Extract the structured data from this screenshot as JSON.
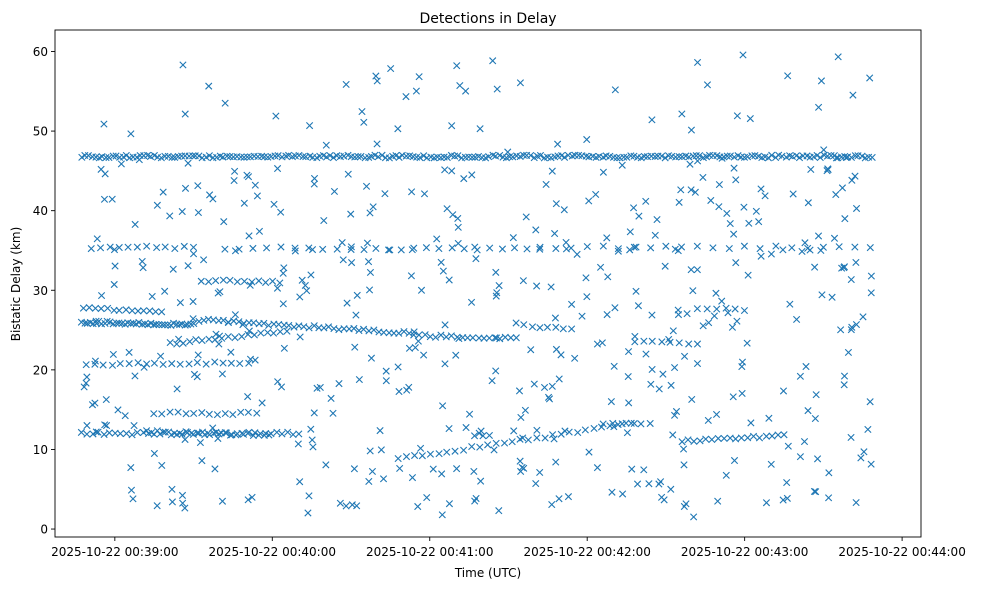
{
  "chart_data": {
    "type": "scatter",
    "title": "Detections in Delay",
    "xlabel": "Time (UTC)",
    "ylabel": "Bistatic Delay (km)",
    "marker": "x",
    "color": "#1f77b4",
    "grid": false,
    "x_units": "minutes since 2025-10-22 00:38:00",
    "xlim": [
      0.62,
      6.12
    ],
    "ylim": [
      -1,
      62.7
    ],
    "xticks": [
      {
        "value": 1,
        "label": "2025-10-22 00:39:00"
      },
      {
        "value": 2,
        "label": "2025-10-22 00:40:00"
      },
      {
        "value": 3,
        "label": "2025-10-22 00:41:00"
      },
      {
        "value": 4,
        "label": "2025-10-22 00:42:00"
      },
      {
        "value": 5,
        "label": "2025-10-22 00:43:00"
      },
      {
        "value": 6,
        "label": "2025-10-22 00:44:00"
      }
    ],
    "yticks": [
      {
        "value": 0,
        "label": "0"
      },
      {
        "value": 10,
        "label": "10"
      },
      {
        "value": 20,
        "label": "20"
      },
      {
        "value": 30,
        "label": "30"
      },
      {
        "value": 40,
        "label": "40"
      },
      {
        "value": 50,
        "label": "50"
      },
      {
        "value": 60,
        "label": "60"
      }
    ],
    "tracks": [
      {
        "name": "band-46.8",
        "x_start": 0.79,
        "x_end": 5.81,
        "y_start": 46.8,
        "y_end": 46.8,
        "count": 230
      },
      {
        "name": "band-12",
        "x_start": 0.79,
        "x_end": 2.17,
        "y_start": 12.0,
        "y_end": 12.0,
        "count": 40
      },
      {
        "name": "band-35.5-a",
        "x_start": 0.85,
        "x_end": 1.5,
        "y_start": 35.4,
        "y_end": 35.4,
        "count": 12
      },
      {
        "name": "band-35.5-b",
        "x_start": 1.7,
        "x_end": 2.5,
        "y_start": 35.3,
        "y_end": 35.3,
        "count": 10
      },
      {
        "name": "band-35.5-c",
        "x_start": 2.5,
        "x_end": 3.7,
        "y_start": 35.2,
        "y_end": 35.2,
        "count": 16
      },
      {
        "name": "band-35.5-d",
        "x_start": 3.7,
        "x_end": 5.8,
        "y_start": 35.4,
        "y_end": 35.4,
        "count": 22
      },
      {
        "name": "band-25.8",
        "x_start": 0.79,
        "x_end": 1.5,
        "y_start": 26.0,
        "y_end": 25.7,
        "count": 40
      },
      {
        "name": "track-descending-25",
        "x_start": 1.5,
        "x_end": 2.9,
        "y_start": 26.3,
        "y_end": 24.6,
        "count": 45
      },
      {
        "name": "track-23-24",
        "x_start": 2.9,
        "x_end": 3.55,
        "y_start": 24.3,
        "y_end": 23.9,
        "count": 20
      },
      {
        "name": "track-ascending-24",
        "x_start": 1.35,
        "x_end": 2.05,
        "y_start": 23.3,
        "y_end": 24.8,
        "count": 18
      },
      {
        "name": "band-20.8",
        "x_start": 0.82,
        "x_end": 1.85,
        "y_start": 20.7,
        "y_end": 20.9,
        "count": 20
      },
      {
        "name": "band-31",
        "x_start": 1.55,
        "x_end": 2.05,
        "y_start": 31.2,
        "y_end": 31.0,
        "count": 12
      },
      {
        "name": "track-14.5",
        "x_start": 1.25,
        "x_end": 1.9,
        "y_start": 14.6,
        "y_end": 14.5,
        "count": 14
      },
      {
        "name": "track-12.3",
        "x_start": 1.2,
        "x_end": 1.95,
        "y_start": 12.3,
        "y_end": 11.8,
        "count": 22
      },
      {
        "name": "track-ascending-13",
        "x_start": 2.8,
        "x_end": 4.3,
        "y_start": 8.8,
        "y_end": 13.3,
        "count": 30
      },
      {
        "name": "band-27.5",
        "x_start": 0.8,
        "x_end": 1.3,
        "y_start": 27.8,
        "y_end": 27.4,
        "count": 14
      },
      {
        "name": "track-ascending-11",
        "x_start": 4.6,
        "x_end": 5.25,
        "y_start": 11.0,
        "y_end": 11.8,
        "count": 18
      },
      {
        "name": "band-23.5",
        "x_start": 4.3,
        "x_end": 4.7,
        "y_start": 23.6,
        "y_end": 23.3,
        "count": 8
      },
      {
        "name": "band-27.8",
        "x_start": 4.7,
        "x_end": 5.0,
        "y_start": 27.8,
        "y_end": 27.6,
        "count": 6
      },
      {
        "name": "band-26",
        "x_start": 3.55,
        "x_end": 3.9,
        "y_start": 25.8,
        "y_end": 25.0,
        "count": 8
      },
      {
        "name": "band-13.4",
        "x_start": 4.1,
        "x_end": 4.4,
        "y_start": 13.3,
        "y_end": 13.4,
        "count": 6
      }
    ],
    "scatter_noise": {
      "x_range": [
        0.79,
        5.81
      ],
      "y_range": [
        1.5,
        59.9
      ],
      "count": 520
    }
  }
}
